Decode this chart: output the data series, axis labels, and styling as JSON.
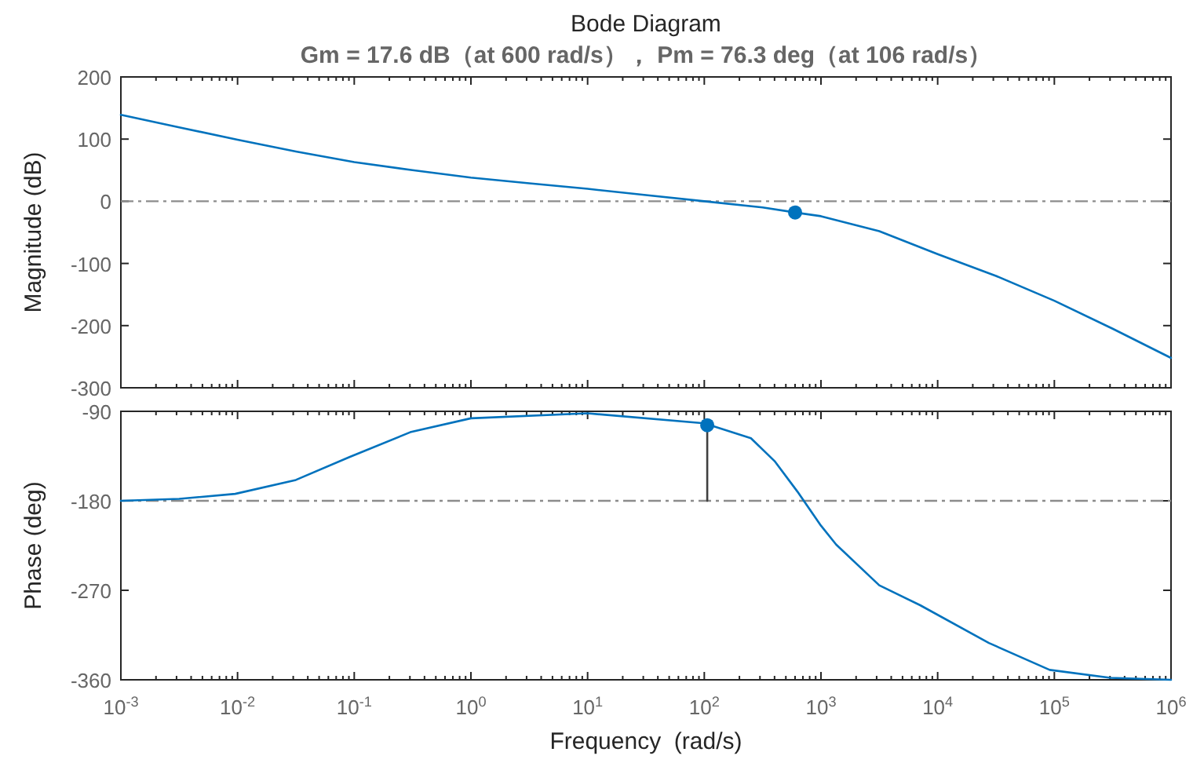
{
  "chart_data": [
    {
      "type": "line",
      "title": "Bode Diagram",
      "subtitle": "Gm = 17.6 dB（at 600 rad/s）， Pm = 76.3 deg（at 106 rad/s）",
      "ylabel": "Magnitude (dB)",
      "log": "x",
      "xlim": [
        0.001,
        1000000
      ],
      "ylim": [
        -300,
        200
      ],
      "xticks": [
        {
          "value": 0.001,
          "label": null
        },
        {
          "value": 0.01,
          "label": null
        },
        {
          "value": 0.1,
          "label": null
        },
        {
          "value": 1,
          "label": null
        },
        {
          "value": 10,
          "label": null
        },
        {
          "value": 100,
          "label": null
        },
        {
          "value": 1000,
          "label": null
        },
        {
          "value": 10000,
          "label": null
        },
        {
          "value": 100000,
          "label": null
        },
        {
          "value": 1000000,
          "label": null
        }
      ],
      "yticks": [
        -300,
        -200,
        -100,
        0,
        100,
        200
      ],
      "tick_labels": "y",
      "ref_lines": [
        {
          "axis": "y",
          "value": 0,
          "color": "#8c8c8c",
          "line_style": "dashdot"
        }
      ],
      "series": [
        {
          "color": "#0072bd",
          "x": [
            0.001,
            0.00316,
            0.01,
            0.0316,
            0.1,
            0.316,
            1,
            3.16,
            10,
            31.6,
            100,
            316,
            600,
            1000,
            3160,
            10000,
            31600,
            100000,
            316000,
            1000000
          ],
          "values": [
            139,
            119,
            99,
            80,
            63,
            50,
            38,
            29,
            20,
            10,
            0,
            -10,
            -18,
            -24,
            -48,
            -85,
            -120,
            -160,
            -205,
            -252
          ]
        },
        {
          "type": "scatter",
          "marker": "circle",
          "color": "#0072bd",
          "x": [
            600
          ],
          "values": [
            -18
          ]
        }
      ]
    },
    {
      "type": "line",
      "xlabel": "Frequency  (rad/s)",
      "ylabel": "Phase (deg)",
      "log": "x",
      "xlim": [
        0.001,
        1000000
      ],
      "ylim": [
        -360,
        -90
      ],
      "xticks": [
        {
          "value": 0.001,
          "label": "10$^{-3}$"
        },
        {
          "value": 0.01,
          "label": "10$^{-2}$"
        },
        {
          "value": 0.1,
          "label": "10$^{-1}$"
        },
        {
          "value": 1,
          "label": "10$^{0}$"
        },
        {
          "value": 10,
          "label": "10$^{1}$"
        },
        {
          "value": 100,
          "label": "10$^{2}$"
        },
        {
          "value": 1000,
          "label": "10$^{3}$"
        },
        {
          "value": 10000,
          "label": "10$^{4}$"
        },
        {
          "value": 100000,
          "label": "10$^{5}$"
        },
        {
          "value": 1000000,
          "label": "10$^{6}$"
        }
      ],
      "yticks": [
        -360,
        -270,
        -180,
        -90
      ],
      "ref_lines": [
        {
          "axis": "y",
          "value": -180,
          "color": "#8c8c8c",
          "line_style": "dashdot"
        }
      ],
      "series": [
        {
          "color": "#0072bd",
          "x": [
            0.001,
            0.00316,
            0.00955,
            0.0316,
            0.091,
            0.302,
            1,
            10,
            100,
            251,
            400,
            631,
            1000,
            1350,
            3160,
            7080,
            27500,
            91200,
            302000,
            1000000
          ],
          "values": [
            -180,
            -178,
            -173,
            -159,
            -136,
            -111,
            -97,
            -92,
            -102,
            -117,
            -140,
            -171,
            -205,
            -224,
            -265,
            -285,
            -323,
            -350,
            -358,
            -360
          ]
        },
        {
          "color": "#404040",
          "x": [
            106,
            106
          ],
          "values": [
            -180,
            -104
          ]
        },
        {
          "type": "scatter",
          "marker": "circle",
          "color": "#0072bd",
          "x": [
            106
          ],
          "values": [
            -104
          ]
        }
      ]
    }
  ]
}
